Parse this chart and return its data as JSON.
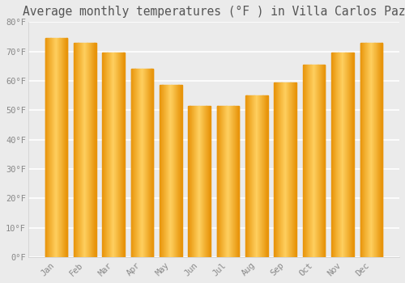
{
  "title": "Average monthly temperatures (°F ) in Villa Carlos Paz",
  "months": [
    "Jan",
    "Feb",
    "Mar",
    "Apr",
    "May",
    "Jun",
    "Jul",
    "Aug",
    "Sep",
    "Oct",
    "Nov",
    "Dec"
  ],
  "values": [
    74.5,
    73.0,
    69.5,
    64.0,
    58.5,
    51.5,
    51.5,
    55.0,
    59.5,
    65.5,
    69.5,
    73.0
  ],
  "bar_color_left": "#E8940A",
  "bar_color_mid": "#FFD060",
  "bar_color_right": "#E8940A",
  "ylim": [
    0,
    80
  ],
  "ytick_step": 10,
  "background_color": "#ebebeb",
  "grid_color": "#ffffff",
  "tick_label_color": "#888888",
  "title_color": "#555555",
  "title_fontsize": 10.5,
  "bar_width": 0.78
}
